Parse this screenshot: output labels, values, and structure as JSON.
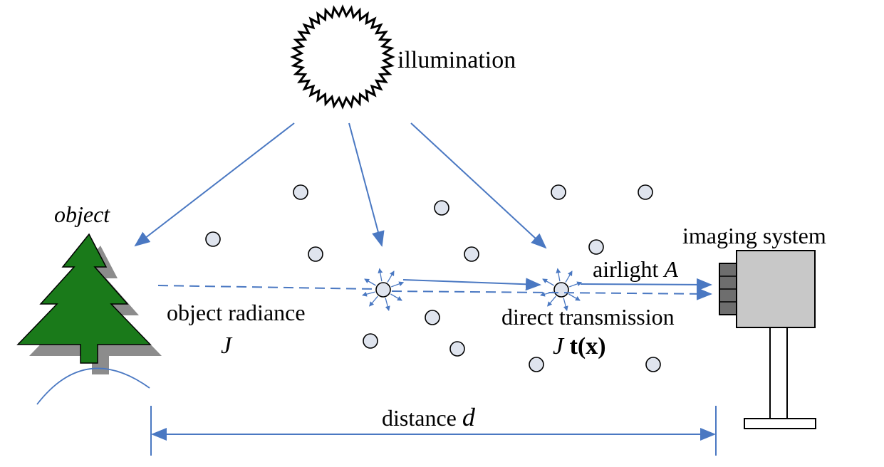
{
  "labels": {
    "illumination": "illumination",
    "object": "object",
    "imaging_system": "imaging system",
    "airlight_word": "airlight",
    "airlight_symbol": "A",
    "object_radiance": "object radiance",
    "object_radiance_symbol": "J",
    "direct_transmission": "direct transmission",
    "transmission_J": "J",
    "transmission_t": "t(x)",
    "distance_word": "distance",
    "distance_symbol": "d"
  },
  "colors": {
    "beam": "#4a78c2",
    "tree": "#1a7a1a",
    "tree_shadow": "#8c8c8c",
    "camera_body": "#c8c8c8",
    "particle": "#dfe4ee"
  }
}
